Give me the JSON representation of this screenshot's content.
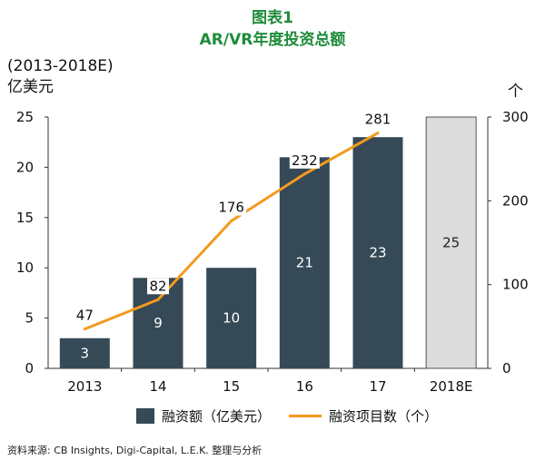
{
  "title": {
    "line1": "图表1",
    "line2": "AR/VR年度投资总额"
  },
  "left_header": {
    "period": "(2013-2018E)",
    "unit": "亿美元"
  },
  "right_unit": "个",
  "colors": {
    "bar": "#354a56",
    "bar_projected": "#dcdcdc",
    "line": "#f39a1e",
    "title": "#1e8c3a"
  },
  "chart_data": {
    "type": "bar",
    "categories": [
      "2013",
      "14",
      "15",
      "16",
      "17",
      "2018E"
    ],
    "series": [
      {
        "name": "融资额（亿美元）",
        "type": "bar",
        "axis": "left",
        "values": [
          3,
          9,
          10,
          21,
          23,
          25
        ],
        "projected": [
          false,
          false,
          false,
          false,
          false,
          true
        ]
      },
      {
        "name": "融资项目数（个）",
        "type": "line",
        "axis": "right",
        "values": [
          47,
          82,
          176,
          232,
          281,
          null
        ]
      }
    ],
    "left_axis": {
      "ticks": [
        0,
        5,
        10,
        15,
        20,
        25
      ],
      "ylim": [
        0,
        25
      ]
    },
    "right_axis": {
      "ticks": [
        0,
        100,
        200,
        300
      ],
      "ylim": [
        0,
        300
      ]
    },
    "grid": false,
    "legend_position": "bottom"
  },
  "legend": {
    "bar_label": "融资额（亿美元）",
    "line_label": "融资项目数（个）"
  },
  "source": "资料来源: CB Insights, Digi-Capital, L.E.K. 整理与分析"
}
